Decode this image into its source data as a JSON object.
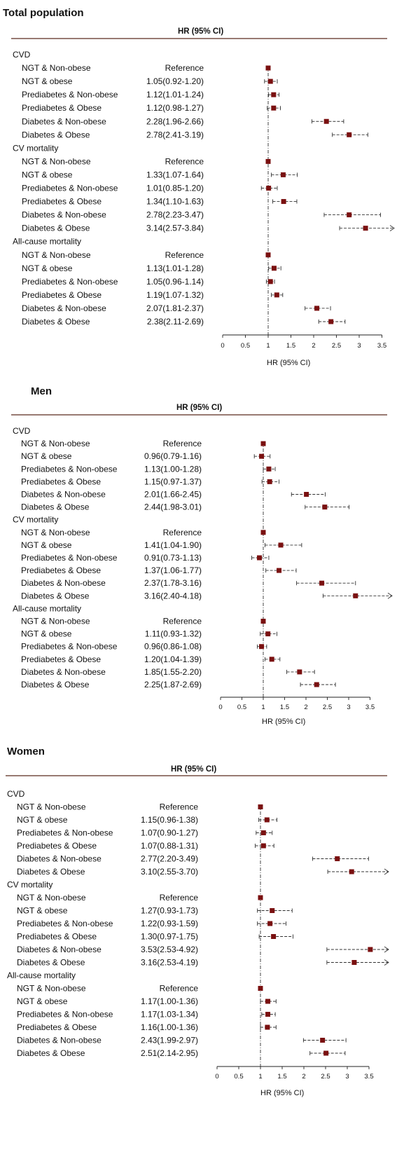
{
  "chart_data": [
    {
      "type": "forest",
      "title": "Total population",
      "header": "HR (95% CI)",
      "xlabel": "HR (95% CI)",
      "xlim": [
        0,
        3.5
      ],
      "ticks": [
        "0",
        "0.5",
        "1",
        "1.5",
        "2",
        "2.5",
        "3",
        "3.5"
      ],
      "reference_line": 1,
      "groups": [
        {
          "name": "CVD",
          "rows": [
            {
              "label": "NGT & Non-obese",
              "hr_text": "Reference",
              "hr": 1,
              "lo": 1,
              "hi": 1
            },
            {
              "label": "NGT & obese",
              "hr_text": "1.05(0.92-1.20)",
              "hr": 1.05,
              "lo": 0.92,
              "hi": 1.2
            },
            {
              "label": "Prediabetes & Non-obese",
              "hr_text": "1.12(1.01-1.24)",
              "hr": 1.12,
              "lo": 1.01,
              "hi": 1.24
            },
            {
              "label": "Prediabetes & Obese",
              "hr_text": "1.12(0.98-1.27)",
              "hr": 1.12,
              "lo": 0.98,
              "hi": 1.27
            },
            {
              "label": "Diabetes & Non-obese",
              "hr_text": "2.28(1.96-2.66)",
              "hr": 2.28,
              "lo": 1.96,
              "hi": 2.66
            },
            {
              "label": "Diabetes & Obese",
              "hr_text": "2.78(2.41-3.19)",
              "hr": 2.78,
              "lo": 2.41,
              "hi": 3.19
            }
          ]
        },
        {
          "name": "CV mortality",
          "rows": [
            {
              "label": "NGT & Non-obese",
              "hr_text": "Reference",
              "hr": 1,
              "lo": 1,
              "hi": 1
            },
            {
              "label": "NGT & obese",
              "hr_text": "1.33(1.07-1.64)",
              "hr": 1.33,
              "lo": 1.07,
              "hi": 1.64
            },
            {
              "label": "Prediabetes & Non-obese",
              "hr_text": "1.01(0.85-1.20)",
              "hr": 1.01,
              "lo": 0.85,
              "hi": 1.2
            },
            {
              "label": "Prediabetes & Obese",
              "hr_text": "1.34(1.10-1.63)",
              "hr": 1.34,
              "lo": 1.1,
              "hi": 1.63
            },
            {
              "label": "Diabetes & Non-obese",
              "hr_text": "2.78(2.23-3.47)",
              "hr": 2.78,
              "lo": 2.23,
              "hi": 3.47
            },
            {
              "label": "Diabetes & Obese",
              "hr_text": "3.14(2.57-3.84)",
              "hr": 3.14,
              "lo": 2.57,
              "hi": 3.84
            }
          ]
        },
        {
          "name": "All-cause mortality",
          "rows": [
            {
              "label": "NGT & Non-obese",
              "hr_text": "Reference",
              "hr": 1,
              "lo": 1,
              "hi": 1
            },
            {
              "label": "NGT & obese",
              "hr_text": "1.13(1.01-1.28)",
              "hr": 1.13,
              "lo": 1.01,
              "hi": 1.28
            },
            {
              "label": "Prediabetes & Non-obese",
              "hr_text": "1.05(0.96-1.14)",
              "hr": 1.05,
              "lo": 0.96,
              "hi": 1.14
            },
            {
              "label": "Prediabetes & Obese",
              "hr_text": "1.19(1.07-1.32)",
              "hr": 1.19,
              "lo": 1.07,
              "hi": 1.32
            },
            {
              "label": "Diabetes & Non-obese",
              "hr_text": "2.07(1.81-2.37)",
              "hr": 2.07,
              "lo": 1.81,
              "hi": 2.37
            },
            {
              "label": "Diabetes & Obese",
              "hr_text": "2.38(2.11-2.69)",
              "hr": 2.38,
              "lo": 2.11,
              "hi": 2.69
            }
          ]
        }
      ]
    },
    {
      "type": "forest",
      "title": "Men",
      "header": "HR (95% CI)",
      "xlabel": "HR (95% CI)",
      "xlim": [
        0,
        3.5
      ],
      "ticks": [
        "0",
        "0.5",
        "1",
        "1.5",
        "2",
        "2.5",
        "3",
        "3.5"
      ],
      "reference_line": 1,
      "groups": [
        {
          "name": "CVD",
          "rows": [
            {
              "label": "NGT & Non-obese",
              "hr_text": "Reference",
              "hr": 1,
              "lo": 1,
              "hi": 1
            },
            {
              "label": "NGT & obese",
              "hr_text": "0.96(0.79-1.16)",
              "hr": 0.96,
              "lo": 0.79,
              "hi": 1.16
            },
            {
              "label": "Prediabetes & Non-obese",
              "hr_text": "1.13(1.00-1.28)",
              "hr": 1.13,
              "lo": 1.0,
              "hi": 1.28
            },
            {
              "label": "Prediabetes & Obese",
              "hr_text": "1.15(0.97-1.37)",
              "hr": 1.15,
              "lo": 0.97,
              "hi": 1.37
            },
            {
              "label": "Diabetes & Non-obese",
              "hr_text": "2.01(1.66-2.45)",
              "hr": 2.01,
              "lo": 1.66,
              "hi": 2.45
            },
            {
              "label": "Diabetes & Obese",
              "hr_text": "2.44(1.98-3.01)",
              "hr": 2.44,
              "lo": 1.98,
              "hi": 3.01
            }
          ]
        },
        {
          "name": "CV mortality",
          "rows": [
            {
              "label": "NGT & Non-obese",
              "hr_text": "Reference",
              "hr": 1,
              "lo": 1,
              "hi": 1
            },
            {
              "label": "NGT & obese",
              "hr_text": "1.41(1.04-1.90)",
              "hr": 1.41,
              "lo": 1.04,
              "hi": 1.9
            },
            {
              "label": "Prediabetes & Non-obese",
              "hr_text": "0.91(0.73-1.13)",
              "hr": 0.91,
              "lo": 0.73,
              "hi": 1.13
            },
            {
              "label": "Prediabetes & Obese",
              "hr_text": "1.37(1.06-1.77)",
              "hr": 1.37,
              "lo": 1.06,
              "hi": 1.77
            },
            {
              "label": "Diabetes & Non-obese",
              "hr_text": "2.37(1.78-3.16)",
              "hr": 2.37,
              "lo": 1.78,
              "hi": 3.16
            },
            {
              "label": "Diabetes & Obese",
              "hr_text": "3.16(2.40-4.18)",
              "hr": 3.16,
              "lo": 2.4,
              "hi": 4.18
            }
          ]
        },
        {
          "name": "All-cause mortality",
          "rows": [
            {
              "label": "NGT & Non-obese",
              "hr_text": "Reference",
              "hr": 1,
              "lo": 1,
              "hi": 1
            },
            {
              "label": "NGT & obese",
              "hr_text": "1.11(0.93-1.32)",
              "hr": 1.11,
              "lo": 0.93,
              "hi": 1.32
            },
            {
              "label": "Prediabetes & Non-obese",
              "hr_text": "0.96(0.86-1.08)",
              "hr": 0.96,
              "lo": 0.86,
              "hi": 1.08
            },
            {
              "label": "Prediabetes & Obese",
              "hr_text": "1.20(1.04-1.39)",
              "hr": 1.2,
              "lo": 1.04,
              "hi": 1.39
            },
            {
              "label": "Diabetes & Non-obese",
              "hr_text": "1.85(1.55-2.20)",
              "hr": 1.85,
              "lo": 1.55,
              "hi": 2.2
            },
            {
              "label": "Diabetes & Obese",
              "hr_text": "2.25(1.87-2.69)",
              "hr": 2.25,
              "lo": 1.87,
              "hi": 2.69
            }
          ]
        }
      ]
    },
    {
      "type": "forest",
      "title": "Women",
      "header": "HR (95% CI)",
      "xlabel": "HR (95% CI)",
      "xlim": [
        0,
        3.5
      ],
      "ticks": [
        "0",
        "0.5",
        "1",
        "1.5",
        "2",
        "2.5",
        "3",
        "3.5"
      ],
      "reference_line": 1,
      "groups": [
        {
          "name": "CVD",
          "rows": [
            {
              "label": "NGT & Non-obese",
              "hr_text": "Reference",
              "hr": 1,
              "lo": 1,
              "hi": 1
            },
            {
              "label": "NGT & obese",
              "hr_text": "1.15(0.96-1.38)",
              "hr": 1.15,
              "lo": 0.96,
              "hi": 1.38
            },
            {
              "label": "Prediabetes & Non-obese",
              "hr_text": "1.07(0.90-1.27)",
              "hr": 1.07,
              "lo": 0.9,
              "hi": 1.27
            },
            {
              "label": "Prediabetes & Obese",
              "hr_text": "1.07(0.88-1.31)",
              "hr": 1.07,
              "lo": 0.88,
              "hi": 1.31
            },
            {
              "label": "Diabetes & Non-obese",
              "hr_text": "2.77(2.20-3.49)",
              "hr": 2.77,
              "lo": 2.2,
              "hi": 3.49
            },
            {
              "label": "Diabetes & Obese",
              "hr_text": "3.10(2.55-3.70)",
              "hr": 3.1,
              "lo": 2.55,
              "hi": 3.7
            }
          ]
        },
        {
          "name": "CV mortality",
          "rows": [
            {
              "label": "NGT & Non-obese",
              "hr_text": "Reference",
              "hr": 1,
              "lo": 1,
              "hi": 1
            },
            {
              "label": "NGT & obese",
              "hr_text": "1.27(0.93-1.73)",
              "hr": 1.27,
              "lo": 0.93,
              "hi": 1.73
            },
            {
              "label": "Prediabetes & Non-obese",
              "hr_text": "1.22(0.93-1.59)",
              "hr": 1.22,
              "lo": 0.93,
              "hi": 1.59
            },
            {
              "label": "Prediabetes & Obese",
              "hr_text": "1.30(0.97-1.75)",
              "hr": 1.3,
              "lo": 0.97,
              "hi": 1.75
            },
            {
              "label": "Diabetes & Non-obese",
              "hr_text": "3.53(2.53-4.92)",
              "hr": 3.53,
              "lo": 2.53,
              "hi": 4.92
            },
            {
              "label": "Diabetes & Obese",
              "hr_text": "3.16(2.53-4.19)",
              "hr": 3.16,
              "lo": 2.53,
              "hi": 4.19
            }
          ]
        },
        {
          "name": "All-cause mortality",
          "rows": [
            {
              "label": "NGT & Non-obese",
              "hr_text": "Reference",
              "hr": 1,
              "lo": 1,
              "hi": 1
            },
            {
              "label": "NGT & obese",
              "hr_text": "1.17(1.00-1.36)",
              "hr": 1.17,
              "lo": 1.0,
              "hi": 1.36
            },
            {
              "label": "Prediabetes & Non-obese",
              "hr_text": "1.17(1.03-1.34)",
              "hr": 1.17,
              "lo": 1.03,
              "hi": 1.34
            },
            {
              "label": "Prediabetes & Obese",
              "hr_text": "1.16(1.00-1.36)",
              "hr": 1.16,
              "lo": 1.0,
              "hi": 1.36
            },
            {
              "label": "Diabetes & Non-obese",
              "hr_text": "2.43(1.99-2.97)",
              "hr": 2.43,
              "lo": 1.99,
              "hi": 2.97
            },
            {
              "label": "Diabetes & Obese",
              "hr_text": "2.51(2.14-2.95)",
              "hr": 2.51,
              "lo": 2.14,
              "hi": 2.95
            }
          ]
        }
      ]
    }
  ],
  "colors": {
    "marker": "#7a1010",
    "ci_line": "#333333",
    "rule": "#5a2a1e",
    "text": "#111111"
  }
}
